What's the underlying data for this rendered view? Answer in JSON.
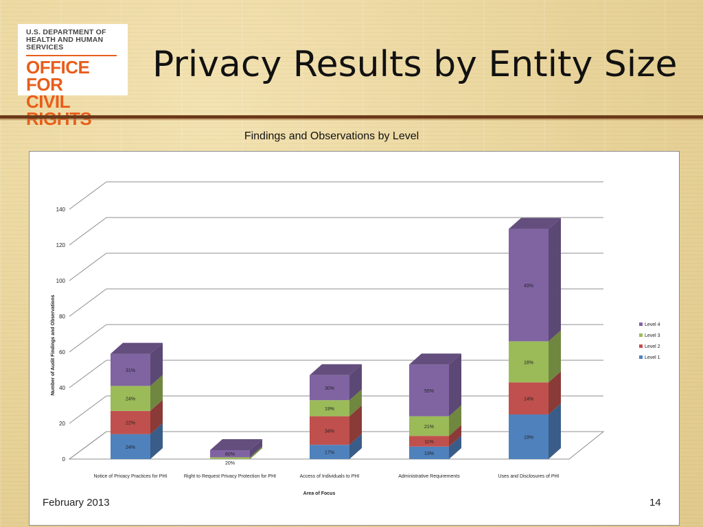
{
  "logo": {
    "line1": "U.S. DEPARTMENT OF",
    "line2": "HEALTH AND HUMAN SERVICES",
    "line3": "OFFICE FOR",
    "line4": "CIVIL RIGHTS"
  },
  "title": "Privacy Results by Entity Size",
  "footer": {
    "date": "February 2013",
    "page": "14"
  },
  "chart_data": {
    "type": "bar",
    "stacked": true,
    "three_d": true,
    "title": "Findings and Observations by Level",
    "xlabel": "Area of Focus",
    "ylabel": "Number of Audit Findings and Observations",
    "ylim": [
      0,
      140
    ],
    "yticks": [
      0,
      20,
      40,
      60,
      80,
      100,
      120,
      140
    ],
    "grid": true,
    "legend_position": "right",
    "categories": [
      "Notice of Privacy Practices for PHI",
      "Right to Request Privacy Protection for PHI",
      "Access of Individuals to PHI",
      "Administrative Requirements",
      "Uses and Disclosures of PHI"
    ],
    "series": [
      {
        "name": "Level 1",
        "color": "#4f81bd",
        "values": [
          14,
          0,
          8,
          7,
          25
        ],
        "labels": [
          "24%",
          "",
          "17%",
          "13%",
          "19%"
        ]
      },
      {
        "name": "Level 2",
        "color": "#c0504d",
        "values": [
          13,
          0,
          16,
          6,
          18
        ],
        "labels": [
          "22%",
          "",
          "34%",
          "11%",
          "14%"
        ]
      },
      {
        "name": "Level 3",
        "color": "#9bbb59",
        "values": [
          14,
          1,
          9,
          11,
          23
        ],
        "labels": [
          "24%",
          "20%",
          "19%",
          "21%",
          "18%"
        ]
      },
      {
        "name": "Level 4",
        "color": "#8064a2",
        "values": [
          18,
          4,
          14,
          29,
          63
        ],
        "labels": [
          "31%",
          "80%",
          "30%",
          "55%",
          "49%"
        ]
      }
    ]
  }
}
